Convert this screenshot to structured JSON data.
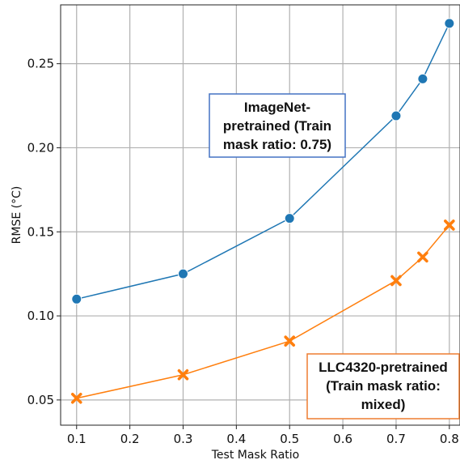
{
  "chart_data": {
    "type": "line",
    "title": "",
    "xlabel": "Test Mask Ratio",
    "ylabel": "RMSE (°C)",
    "xlim": [
      0.07,
      0.82
    ],
    "ylim": [
      0.035,
      0.285
    ],
    "grid": true,
    "x_ticks": [
      0.1,
      0.2,
      0.3,
      0.4,
      0.5,
      0.6,
      0.7,
      0.8
    ],
    "x_tick_labels": [
      "0.1",
      "0.2",
      "0.3",
      "0.4",
      "0.5",
      "0.6",
      "0.7",
      "0.8"
    ],
    "y_ticks": [
      0.05,
      0.1,
      0.15,
      0.2,
      0.25
    ],
    "y_tick_labels": [
      "0.05",
      "0.10",
      "0.15",
      "0.20",
      "0.25"
    ],
    "series": [
      {
        "x": [
          0.1,
          0.3,
          0.5,
          0.7,
          0.75,
          0.8
        ],
        "values": [
          0.11,
          0.125,
          0.158,
          0.219,
          0.241,
          0.274
        ],
        "color": "#1f77b4",
        "marker": "circle"
      },
      {
        "x": [
          0.1,
          0.3,
          0.5,
          0.7,
          0.75,
          0.8
        ],
        "values": [
          0.051,
          0.065,
          0.085,
          0.121,
          0.135,
          0.154
        ],
        "color": "#ff7f0e",
        "marker": "x"
      }
    ],
    "annotations": [
      {
        "lines": [
          "ImageNet-",
          "pretrained (Train",
          "mask ratio: 0.75)"
        ],
        "border_color": "#4472c4"
      },
      {
        "lines": [
          "LLC4320-pretrained",
          "(Train mask ratio:",
          "mixed)"
        ],
        "border_color": "#ed7d31"
      }
    ]
  }
}
